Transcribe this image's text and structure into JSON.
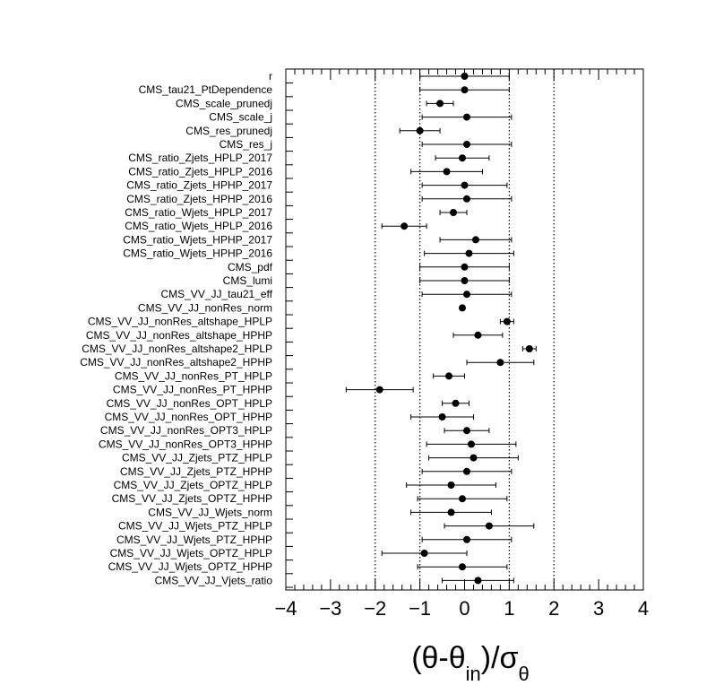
{
  "chart_data": {
    "type": "scatter",
    "title": "",
    "xlabel": "(θ-θ_in)/σ_θ",
    "xlabel_parts": {
      "open": "(θ-θ",
      "sub": "in",
      "mid": ")/σ",
      "sub2": "θ"
    },
    "xlim": [
      -4,
      4
    ],
    "xticks": [
      "−4",
      "−3",
      "−2",
      "−1",
      "0",
      "1",
      "2",
      "3",
      "4"
    ],
    "xtick_values": [
      -4,
      -3,
      -2,
      -1,
      0,
      1,
      2,
      3,
      4
    ],
    "reference_lines": [
      -2,
      -1,
      1,
      2
    ],
    "grid": false,
    "parameters": [
      {
        "name": "r",
        "value": 0.0,
        "low": -1.0,
        "high": 1.0
      },
      {
        "name": "CMS_tau21_PtDependence",
        "value": 0.0,
        "low": -1.0,
        "high": 1.0
      },
      {
        "name": "CMS_scale_prunedj",
        "value": -0.55,
        "low": -0.85,
        "high": -0.25
      },
      {
        "name": "CMS_scale_j",
        "value": 0.05,
        "low": -0.95,
        "high": 1.05
      },
      {
        "name": "CMS_res_prunedj",
        "value": -1.0,
        "low": -1.45,
        "high": -0.55
      },
      {
        "name": "CMS_res_j",
        "value": 0.05,
        "low": -0.95,
        "high": 1.05
      },
      {
        "name": "CMS_ratio_Zjets_HPLP_2017",
        "value": -0.05,
        "low": -0.65,
        "high": 0.55
      },
      {
        "name": "CMS_ratio_Zjets_HPLP_2016",
        "value": -0.4,
        "low": -1.2,
        "high": 0.4
      },
      {
        "name": "CMS_ratio_Zjets_HPHP_2017",
        "value": 0.0,
        "low": -0.95,
        "high": 0.95
      },
      {
        "name": "CMS_ratio_Zjets_HPHP_2016",
        "value": 0.05,
        "low": -0.95,
        "high": 1.05
      },
      {
        "name": "CMS_ratio_Wjets_HPLP_2017",
        "value": -0.25,
        "low": -0.55,
        "high": 0.05
      },
      {
        "name": "CMS_ratio_Wjets_HPLP_2016",
        "value": -1.35,
        "low": -1.85,
        "high": -0.85
      },
      {
        "name": "CMS_ratio_Wjets_HPHP_2017",
        "value": 0.25,
        "low": -0.55,
        "high": 1.05
      },
      {
        "name": "CMS_ratio_Wjets_HPHP_2016",
        "value": 0.1,
        "low": -0.9,
        "high": 1.1
      },
      {
        "name": "CMS_pdf",
        "value": 0.0,
        "low": -1.0,
        "high": 1.0
      },
      {
        "name": "CMS_lumi",
        "value": 0.0,
        "low": -1.0,
        "high": 1.0
      },
      {
        "name": "CMS_VV_JJ_tau21_eff",
        "value": 0.05,
        "low": -0.95,
        "high": 1.05
      },
      {
        "name": "CMS_VV_JJ_nonRes_norm",
        "value": -0.05,
        "low": -0.1,
        "high": 0.0
      },
      {
        "name": "CMS_VV_JJ_nonRes_altshape_HPLP",
        "value": 0.95,
        "low": 0.8,
        "high": 1.1
      },
      {
        "name": "CMS_VV_JJ_nonRes_altshape_HPHP",
        "value": 0.3,
        "low": -0.25,
        "high": 0.85
      },
      {
        "name": "CMS_VV_JJ_nonRes_altshape2_HPLP",
        "value": 1.45,
        "low": 1.3,
        "high": 1.6
      },
      {
        "name": "CMS_VV_JJ_nonRes_altshape2_HPHP",
        "value": 0.8,
        "low": 0.05,
        "high": 1.55
      },
      {
        "name": "CMS_VV_JJ_nonRes_PT_HPLP",
        "value": -0.35,
        "low": -0.7,
        "high": 0.0
      },
      {
        "name": "CMS_VV_JJ_nonRes_PT_HPHP",
        "value": -1.9,
        "low": -2.65,
        "high": -1.15
      },
      {
        "name": "CMS_VV_JJ_nonRes_OPT_HPLP",
        "value": -0.2,
        "low": -0.5,
        "high": 0.1
      },
      {
        "name": "CMS_VV_JJ_nonRes_OPT_HPHP",
        "value": -0.5,
        "low": -1.2,
        "high": 0.2
      },
      {
        "name": "CMS_VV_JJ_nonRes_OPT3_HPLP",
        "value": 0.05,
        "low": -0.45,
        "high": 0.55
      },
      {
        "name": "CMS_VV_JJ_nonRes_OPT3_HPHP",
        "value": 0.15,
        "low": -0.85,
        "high": 1.15
      },
      {
        "name": "CMS_VV_JJ_Zjets_PTZ_HPLP",
        "value": 0.2,
        "low": -0.8,
        "high": 1.2
      },
      {
        "name": "CMS_VV_JJ_Zjets_PTZ_HPHP",
        "value": 0.05,
        "low": -0.95,
        "high": 1.05
      },
      {
        "name": "CMS_VV_JJ_Zjets_OPTZ_HPLP",
        "value": -0.3,
        "low": -1.3,
        "high": 0.7
      },
      {
        "name": "CMS_VV_JJ_Zjets_OPTZ_HPHP",
        "value": -0.05,
        "low": -1.05,
        "high": 0.95
      },
      {
        "name": "CMS_VV_JJ_Wjets_norm",
        "value": -0.3,
        "low": -1.2,
        "high": 0.6
      },
      {
        "name": "CMS_VV_JJ_Wjets_PTZ_HPLP",
        "value": 0.55,
        "low": -0.45,
        "high": 1.55
      },
      {
        "name": "CMS_VV_JJ_Wjets_PTZ_HPHP",
        "value": 0.05,
        "low": -0.95,
        "high": 1.05
      },
      {
        "name": "CMS_VV_JJ_Wjets_OPTZ_HPLP",
        "value": -0.9,
        "low": -1.85,
        "high": 0.05
      },
      {
        "name": "CMS_VV_JJ_Wjets_OPTZ_HPHP",
        "value": -0.05,
        "low": -1.05,
        "high": 0.95
      },
      {
        "name": "CMS_VV_JJ_Vjets_ratio",
        "value": 0.3,
        "low": -0.5,
        "high": 1.1
      }
    ],
    "colors": {
      "marker": "#000000",
      "errorbar": "#000000",
      "frame": "#000000",
      "reference_line": "#000000"
    }
  }
}
